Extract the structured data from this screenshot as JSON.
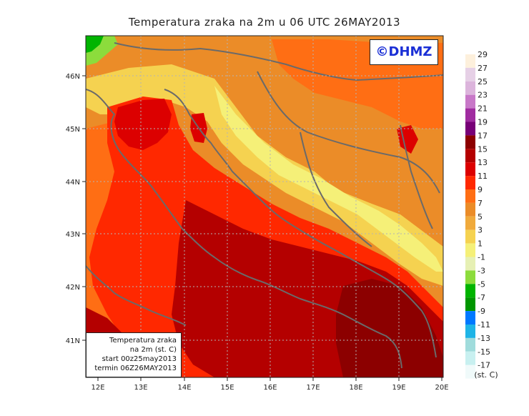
{
  "title": "Temperatura zraka na 2m u 06 UTC 26MAY2013",
  "copyright": "©DHMZ",
  "info": {
    "line1": "Temperatura zraka",
    "line2": "na 2m (st. C)",
    "line3": "start 00z25may2013",
    "line4": "termin 06Z26MAY2013"
  },
  "axes": {
    "lon_labels": [
      "12E",
      "13E",
      "14E",
      "15E",
      "16E",
      "17E",
      "18E",
      "19E",
      "20E"
    ],
    "lat_labels": [
      "46N",
      "45N",
      "44N",
      "43N",
      "42N",
      "41N"
    ]
  },
  "legend": {
    "labels": [
      "29",
      "27",
      "25",
      "23",
      "21",
      "19",
      "17",
      "15",
      "13",
      "11",
      "9",
      "7",
      "5",
      "3",
      "1",
      "-1",
      "-3",
      "-5",
      "-7",
      "-9",
      "-11",
      "-13",
      "-15",
      "-17"
    ],
    "unit": "(st. C)",
    "colors": [
      "#fdf0dc",
      "#e6d0e6",
      "#dcb4dc",
      "#c878c8",
      "#a02ca0",
      "#780078",
      "#8c0000",
      "#b40000",
      "#dc0000",
      "#ff2800",
      "#ff6e14",
      "#eb8c28",
      "#f0aa3c",
      "#f5d250",
      "#f5f078",
      "#e6f0b4",
      "#8cdc3c",
      "#00b400",
      "#009600",
      "#0078ff",
      "#1eb4e6",
      "#a0dcdc",
      "#c8f0f0",
      "#f0fafa"
    ],
    "color_meaning": "temperature bands from 29 down to -17 st. C"
  }
}
